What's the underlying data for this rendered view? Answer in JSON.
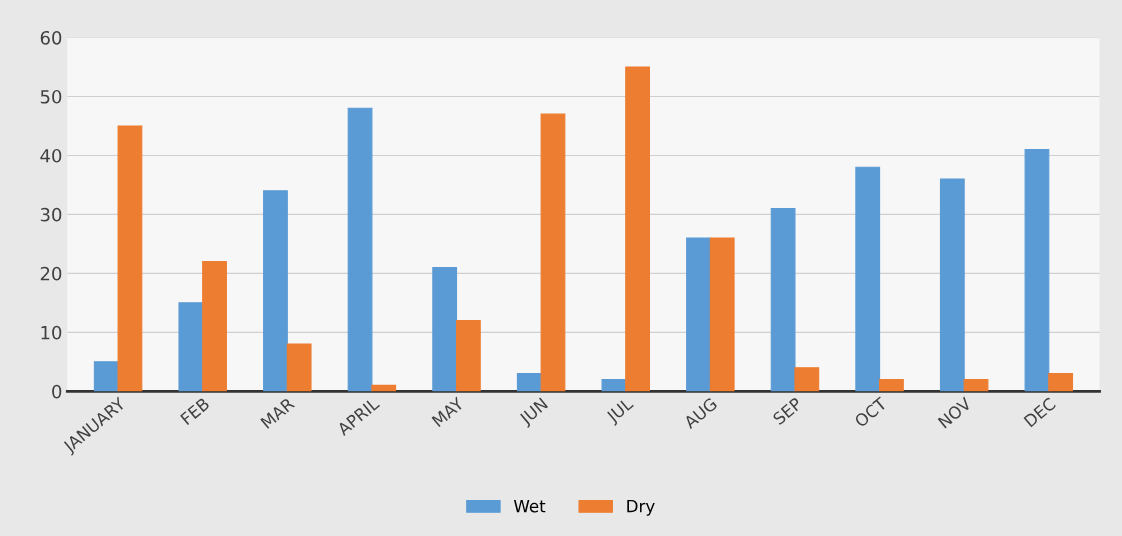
{
  "chart_data": {
    "type": "bar",
    "categories": [
      "JANUARY",
      "FEB",
      "MAR",
      "APRIL",
      "MAY",
      "JUN",
      "JUL",
      "AUG",
      "SEP",
      "OCT",
      "NOV",
      "DEC"
    ],
    "series": [
      {
        "name": "Wet",
        "color": "#5b9bd5",
        "values": [
          5,
          15,
          34,
          48,
          21,
          3,
          2,
          26,
          31,
          38,
          36,
          41
        ]
      },
      {
        "name": "Dry",
        "color": "#ed7d31",
        "values": [
          45,
          22,
          8,
          1,
          12,
          47,
          55,
          26,
          4,
          2,
          2,
          3
        ]
      }
    ],
    "ylim": [
      0,
      60
    ],
    "yticks": [
      0,
      10,
      20,
      30,
      40,
      50,
      60
    ],
    "grid": "y",
    "legend": "bottom"
  }
}
